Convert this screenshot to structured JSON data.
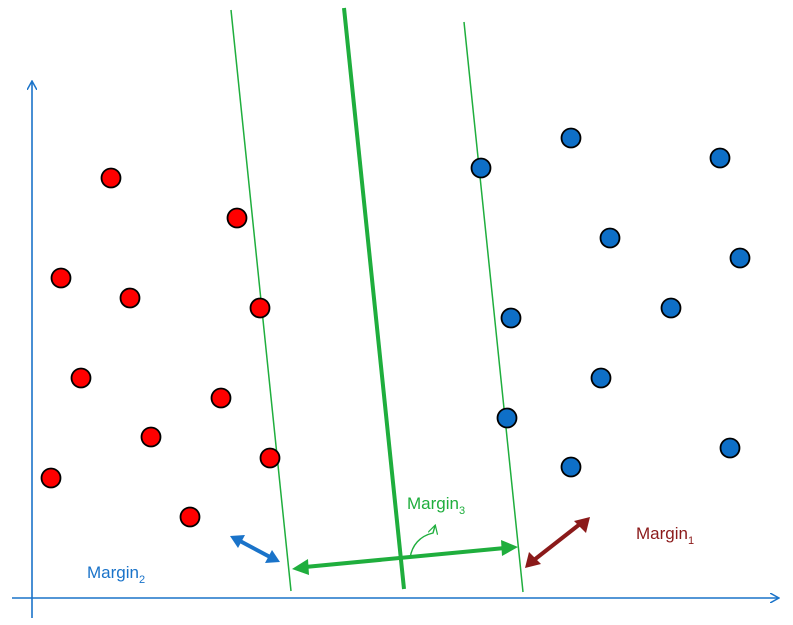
{
  "colors": {
    "axis": "#1a73c9",
    "hyperplane": "#1fae3d",
    "red_point": "#ff0000",
    "blue_point": "#0e6fc7",
    "margin1": "#8b1a1a",
    "margin2": "#1a73c9",
    "margin3": "#1fae3d"
  },
  "labels": {
    "margin1": {
      "base": "Margin",
      "sub": "1"
    },
    "margin2": {
      "base": "Margin",
      "sub": "2"
    },
    "margin3": {
      "base": "Margin",
      "sub": "3"
    }
  },
  "icons": {
    "axes": "axis-arrow-icon",
    "margin_arrows": "double-headed-arrow-icon",
    "angle_arc": "curved-arrow-icon"
  }
}
